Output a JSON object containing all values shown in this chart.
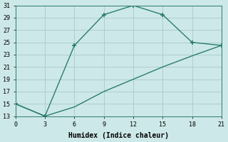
{
  "line1_x": [
    0,
    3,
    6,
    9,
    12,
    15,
    18,
    21
  ],
  "line1_y": [
    15,
    13,
    24.5,
    29.5,
    31,
    29.5,
    25,
    24.5
  ],
  "line2_x": [
    0,
    3,
    6,
    9,
    12,
    15,
    18,
    21
  ],
  "line2_y": [
    15,
    13,
    14.5,
    17,
    19,
    21,
    22.8,
    24.5
  ],
  "line_color": "#2a7d6e",
  "bg_color": "#cde8e8",
  "grid_color": "#aecece",
  "xlabel": "Humidex (Indice chaleur)",
  "xlim": [
    0,
    21
  ],
  "ylim": [
    13,
    31
  ],
  "xticks": [
    0,
    3,
    6,
    9,
    12,
    15,
    18,
    21
  ],
  "yticks": [
    13,
    15,
    17,
    19,
    21,
    23,
    25,
    27,
    29,
    31
  ],
  "marker": "+",
  "markersize": 5,
  "markeredgewidth": 1.2,
  "linewidth": 1.0,
  "tick_labelsize": 6,
  "xlabel_fontsize": 7
}
